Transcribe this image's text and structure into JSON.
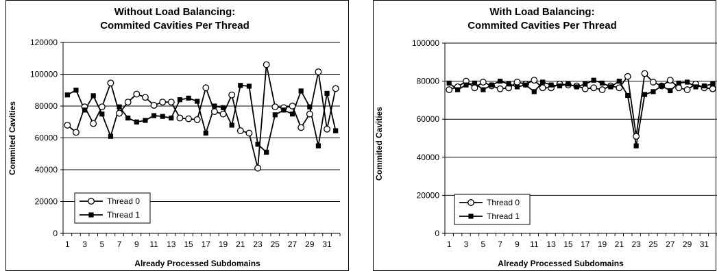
{
  "chart_data": [
    {
      "type": "line",
      "title": [
        "Without Load Balancing:",
        "Commited Cavities Per Thread"
      ],
      "xlabel": "Already Processed Subdomains",
      "ylabel": "Commited Cavities",
      "ylim": [
        0,
        120000
      ],
      "yticks": [
        0,
        20000,
        40000,
        60000,
        80000,
        100000,
        120000
      ],
      "xticks": [
        1,
        3,
        5,
        7,
        9,
        11,
        13,
        15,
        17,
        19,
        21,
        23,
        25,
        27,
        29,
        31
      ],
      "xlim": [
        1,
        32
      ],
      "grid": "horizontal",
      "legend_position": "bottom-left",
      "x": [
        1,
        2,
        3,
        4,
        5,
        6,
        7,
        8,
        9,
        10,
        11,
        12,
        13,
        14,
        15,
        16,
        17,
        18,
        19,
        20,
        21,
        22,
        23,
        24,
        25,
        26,
        27,
        28,
        29,
        30,
        31,
        32
      ],
      "series": [
        {
          "name": "Thread 0",
          "marker": "open-circle",
          "values": [
            68000,
            63500,
            79500,
            69000,
            79500,
            94500,
            75500,
            82500,
            87500,
            85500,
            80500,
            82500,
            82500,
            72500,
            72000,
            71500,
            91500,
            76500,
            75000,
            87000,
            64500,
            63000,
            41000,
            106000,
            79500,
            79000,
            80000,
            66500,
            75000,
            101500,
            65500,
            91000
          ]
        },
        {
          "name": "Thread 1",
          "marker": "filled-square",
          "values": [
            87000,
            90000,
            77500,
            86500,
            75000,
            61000,
            79500,
            72500,
            70000,
            71000,
            74000,
            73500,
            72500,
            84000,
            85000,
            83000,
            63000,
            80000,
            79000,
            68000,
            93000,
            92500,
            56000,
            51000,
            74500,
            77500,
            75000,
            89500,
            79500,
            55000,
            88000,
            64500
          ]
        }
      ]
    },
    {
      "type": "line",
      "title": [
        "With Load Balancing:",
        "Commited Cavities Per Thread"
      ],
      "xlabel": "Already Processed Subdomains",
      "ylabel": "Commited Cavities",
      "ylim": [
        0,
        100000
      ],
      "yticks": [
        0,
        20000,
        40000,
        60000,
        80000,
        100000
      ],
      "xticks": [
        1,
        3,
        5,
        7,
        9,
        11,
        13,
        15,
        17,
        19,
        21,
        23,
        25,
        27,
        29,
        31
      ],
      "xlim": [
        1,
        32
      ],
      "grid": "horizontal",
      "legend_position": "bottom-left",
      "x": [
        1,
        2,
        3,
        4,
        5,
        6,
        7,
        8,
        9,
        10,
        11,
        12,
        13,
        14,
        15,
        16,
        17,
        18,
        19,
        20,
        21,
        22,
        23,
        24,
        25,
        26,
        27,
        28,
        29,
        30,
        31,
        32
      ],
      "series": [
        {
          "name": "Thread 0",
          "marker": "open-circle",
          "values": [
            75500,
            77000,
            80000,
            76500,
            79500,
            77500,
            76000,
            76500,
            79500,
            78500,
            80500,
            76500,
            76500,
            78500,
            78000,
            77500,
            76000,
            76500,
            75500,
            77500,
            76500,
            82500,
            51000,
            84000,
            79500,
            77500,
            80500,
            76500,
            75500,
            78500,
            76500,
            76000
          ]
        },
        {
          "name": "Thread 1",
          "marker": "filled-square",
          "values": [
            79000,
            75500,
            78000,
            79000,
            75500,
            78000,
            80000,
            78500,
            77000,
            78000,
            74500,
            79500,
            78000,
            77500,
            78500,
            77000,
            78500,
            80500,
            79000,
            77000,
            80000,
            72500,
            46000,
            73000,
            74500,
            77500,
            75000,
            79000,
            79500,
            77000,
            77500,
            78500
          ]
        }
      ]
    }
  ]
}
